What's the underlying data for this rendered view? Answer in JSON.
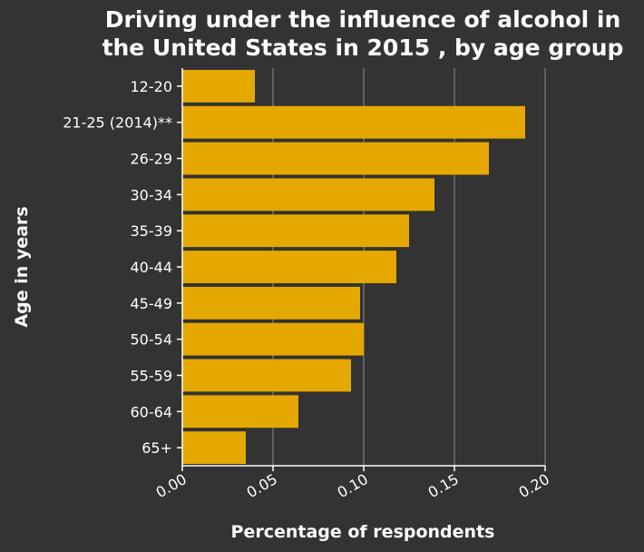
{
  "chart_data": {
    "type": "bar",
    "orientation": "horizontal",
    "title": "Driving under the influence of alcohol in the United States in 2015 , by age group",
    "title_lines": [
      "Driving under the influence of alcohol in",
      "the United States in 2015 , by age group"
    ],
    "xlabel": "Percentage of respondents",
    "ylabel": "Age in years",
    "categories": [
      "12-20",
      "21-25 (2014)**",
      "26-29",
      "30-34",
      "35-39",
      "40-44",
      "45-49",
      "50-54",
      "55-59",
      "60-64",
      "65+"
    ],
    "values": [
      0.04,
      0.189,
      0.169,
      0.139,
      0.125,
      0.118,
      0.098,
      0.1,
      0.093,
      0.064,
      0.035
    ],
    "xlim": [
      0,
      0.2
    ],
    "xticks": [
      0,
      0.05,
      0.1,
      0.15,
      0.2
    ],
    "xtick_labels": [
      "0.00",
      "0.05",
      "0.10",
      "0.15",
      "0.20"
    ],
    "grid": "vertical",
    "legend": "none",
    "colors": {
      "background": "#333333",
      "bar": "#e5a800",
      "grid": "#8c8c8c",
      "text": "#ffffff"
    }
  }
}
